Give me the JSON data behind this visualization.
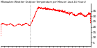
{
  "title": "Milwaukee Weather Outdoor Temperature per Minute (Last 24 Hours)",
  "ylim": [
    2,
    42
  ],
  "xlim": [
    0,
    1440
  ],
  "line_color": "#ff0000",
  "bg_color": "#ffffff",
  "grid_color": "#888888",
  "spine_color": "#000000",
  "dashed_vline_x": 480,
  "ytick_vals": [
    5,
    10,
    15,
    20,
    25,
    30,
    35
  ],
  "xtick_step": 60,
  "rise_start": 478,
  "rise_end": 600,
  "peak_start": 600,
  "peak_end": 820,
  "low_temp": 22,
  "peak_temp": 38,
  "end_temp": 32
}
